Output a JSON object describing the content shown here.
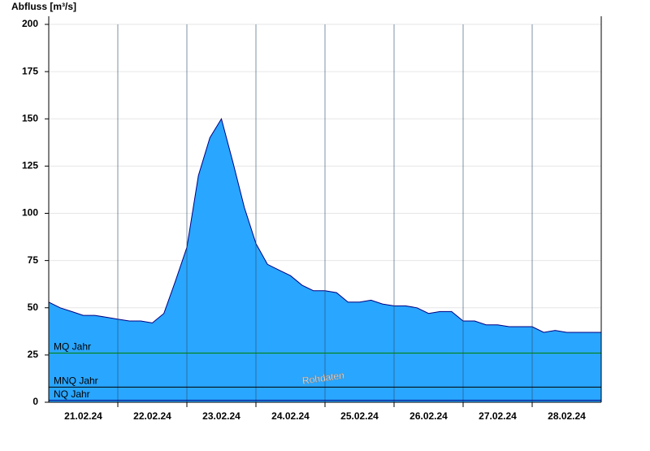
{
  "chart_data": {
    "type": "area",
    "y_label": "Abfluss [m³/s]",
    "categories": [
      "21.02.24",
      "22.02.24",
      "23.02.24",
      "24.02.24",
      "25.02.24",
      "26.02.24",
      "27.02.24",
      "28.02.24"
    ],
    "values": [
      [
        53,
        50,
        48,
        46,
        46,
        45
      ],
      [
        44,
        43,
        43,
        42,
        47,
        64
      ],
      [
        82,
        120,
        140,
        150,
        127,
        103
      ],
      [
        84,
        73,
        70,
        67,
        62,
        59
      ],
      [
        59,
        58,
        53,
        53,
        54,
        52
      ],
      [
        51,
        51,
        50,
        47,
        48,
        48
      ],
      [
        43,
        43,
        41,
        41,
        40,
        40
      ],
      [
        40,
        37,
        38,
        37,
        37,
        37
      ]
    ],
    "color": "#29a6ff",
    "line_color": "#000080",
    "ylim": [
      0,
      200
    ],
    "yticks": [
      0,
      25,
      50,
      75,
      100,
      125,
      150,
      175,
      200
    ],
    "grid": true,
    "reference_lines": [
      {
        "label": "MQ Jahr",
        "value": 26,
        "color": "#008000"
      },
      {
        "label": "MNQ Jahr",
        "value": 8,
        "color": "#000000"
      },
      {
        "label": "NQ Jahr",
        "value": 1,
        "color": "#000080"
      }
    ],
    "watermark": "Rohdaten"
  }
}
